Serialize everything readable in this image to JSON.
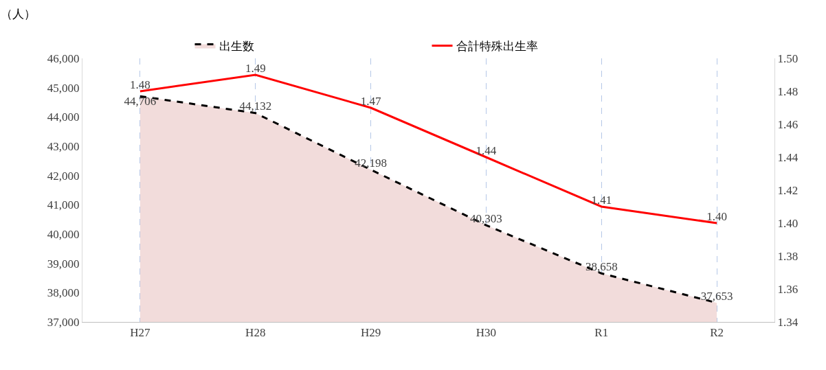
{
  "chart_data": {
    "type": "line",
    "ylabel": "（人）",
    "categories": [
      "H27",
      "H28",
      "H29",
      "H30",
      "R1",
      "R2"
    ],
    "series": [
      {
        "name": "出生数",
        "type": "area",
        "color": "#000000",
        "line_style": "dashed",
        "values": [
          44706,
          44132,
          42198,
          40303,
          38658,
          37653
        ],
        "value_labels": [
          "44,706",
          "44,132",
          "42,198",
          "40,303",
          "38,658",
          "37,653"
        ]
      },
      {
        "name": "合計特殊出生率",
        "type": "line",
        "color": "#ff0000",
        "line_style": "solid",
        "axis": "y2",
        "values": [
          1.48,
          1.49,
          1.47,
          1.44,
          1.41,
          1.4
        ],
        "value_labels": [
          "1.48",
          "1.49",
          "1.47",
          "1.44",
          "1.41",
          "1.40"
        ]
      }
    ],
    "ylim": [
      37000,
      46000
    ],
    "yticks": [
      {
        "value": 37000,
        "label": "37,000"
      },
      {
        "value": 38000,
        "label": "38,000"
      },
      {
        "value": 39000,
        "label": "39,000"
      },
      {
        "value": 40000,
        "label": "40,000"
      },
      {
        "value": 41000,
        "label": "41,000"
      },
      {
        "value": 42000,
        "label": "42,000"
      },
      {
        "value": 43000,
        "label": "43,000"
      },
      {
        "value": 44000,
        "label": "44,000"
      },
      {
        "value": 45000,
        "label": "45,000"
      },
      {
        "value": 46000,
        "label": "46,000"
      }
    ],
    "y2lim": [
      1.34,
      1.5
    ],
    "y2ticks": [
      {
        "value": 1.34,
        "label": "1.34"
      },
      {
        "value": 1.36,
        "label": "1.36"
      },
      {
        "value": 1.38,
        "label": "1.38"
      },
      {
        "value": 1.4,
        "label": "1.40"
      },
      {
        "value": 1.42,
        "label": "1.42"
      },
      {
        "value": 1.44,
        "label": "1.44"
      },
      {
        "value": 1.46,
        "label": "1.46"
      },
      {
        "value": 1.48,
        "label": "1.48"
      },
      {
        "value": 1.5,
        "label": "1.50"
      }
    ],
    "grid": "x",
    "legend": "top"
  }
}
